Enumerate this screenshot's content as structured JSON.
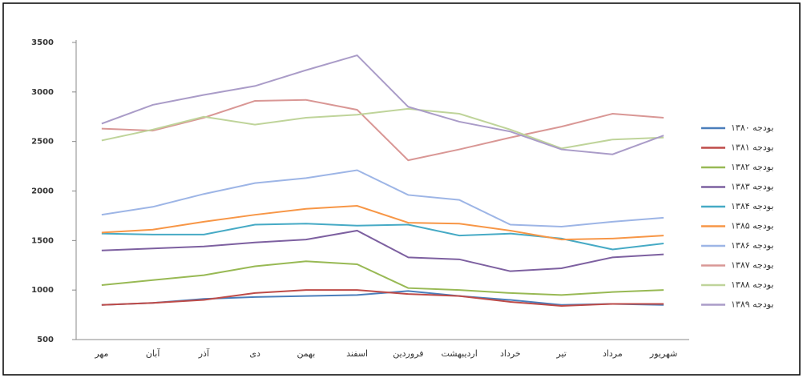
{
  "chart_data": {
    "type": "line",
    "categories": [
      "مهر",
      "آبان",
      "آذر",
      "دی",
      "بهمن",
      "اسفند",
      "فروردین",
      "اردیبهشت",
      "خرداد",
      "تیر",
      "مرداد",
      "شهریور"
    ],
    "ylim": [
      500,
      3500
    ],
    "yticks": [
      500,
      1000,
      1500,
      2000,
      2500,
      3000,
      3500
    ],
    "series": [
      {
        "name": "بودجه ۱۳۸۰",
        "color": "#4a7ebb",
        "values": [
          850,
          870,
          910,
          930,
          940,
          950,
          990,
          940,
          900,
          850,
          860,
          850
        ]
      },
      {
        "name": "بودجه ۱۳۸۱",
        "color": "#be4b48",
        "values": [
          850,
          870,
          900,
          970,
          1000,
          1000,
          960,
          940,
          880,
          840,
          860,
          860
        ]
      },
      {
        "name": "بودجه ۱۳۸۲",
        "color": "#98b954",
        "values": [
          1050,
          1100,
          1150,
          1240,
          1290,
          1260,
          1020,
          1000,
          970,
          950,
          980,
          1000
        ]
      },
      {
        "name": "بودجه ۱۳۸۳",
        "color": "#7d60a0",
        "values": [
          1400,
          1420,
          1440,
          1480,
          1510,
          1600,
          1330,
          1310,
          1190,
          1220,
          1330,
          1360
        ]
      },
      {
        "name": "بودجه ۱۳۸۴",
        "color": "#46aac5",
        "values": [
          1570,
          1560,
          1560,
          1660,
          1670,
          1650,
          1660,
          1550,
          1570,
          1520,
          1410,
          1470
        ]
      },
      {
        "name": "بودجه ۱۳۸۵",
        "color": "#f79646",
        "values": [
          1580,
          1610,
          1690,
          1760,
          1820,
          1850,
          1680,
          1670,
          1600,
          1510,
          1520,
          1550
        ]
      },
      {
        "name": "بودجه ۱۳۸۶",
        "color": "#9db5e6",
        "values": [
          1760,
          1840,
          1970,
          2080,
          2130,
          2210,
          1960,
          1910,
          1660,
          1640,
          1690,
          1730
        ]
      },
      {
        "name": "بودجه ۱۳۸۷",
        "color": "#d99795",
        "values": [
          2630,
          2610,
          2740,
          2910,
          2920,
          2820,
          2310,
          2420,
          2540,
          2650,
          2780,
          2740
        ]
      },
      {
        "name": "بودجه ۱۳۸۸",
        "color": "#bfd49a",
        "values": [
          2510,
          2620,
          2750,
          2670,
          2740,
          2770,
          2830,
          2780,
          2620,
          2430,
          2520,
          2540
        ]
      },
      {
        "name": "بودجه ۱۳۸۹",
        "color": "#aa9cc8",
        "values": [
          2680,
          2870,
          2970,
          3060,
          3220,
          3370,
          2850,
          2700,
          2600,
          2420,
          2370,
          2560
        ]
      }
    ]
  }
}
